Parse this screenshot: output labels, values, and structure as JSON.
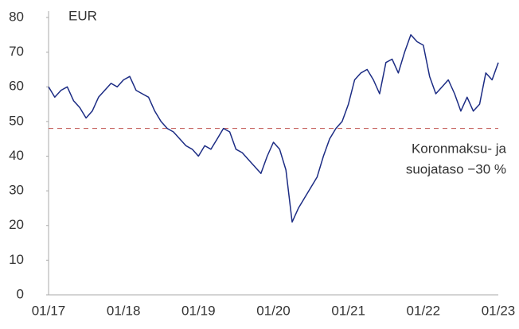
{
  "chart_data": {
    "type": "line",
    "ylabel": "EUR",
    "x": [
      "01/17",
      "02/17",
      "03/17",
      "04/17",
      "05/17",
      "06/17",
      "07/17",
      "08/17",
      "09/17",
      "10/17",
      "11/17",
      "12/17",
      "01/18",
      "02/18",
      "03/18",
      "04/18",
      "05/18",
      "06/18",
      "07/18",
      "08/18",
      "09/18",
      "10/18",
      "11/18",
      "12/18",
      "01/19",
      "02/19",
      "03/19",
      "04/19",
      "05/19",
      "06/19",
      "07/19",
      "08/19",
      "09/19",
      "10/19",
      "11/19",
      "12/19",
      "01/20",
      "02/20",
      "03/20",
      "04/20",
      "05/20",
      "06/20",
      "07/20",
      "08/20",
      "09/20",
      "10/20",
      "11/20",
      "12/20",
      "01/21",
      "02/21",
      "03/21",
      "04/21",
      "05/21",
      "06/21",
      "07/21",
      "08/21",
      "09/21",
      "10/21",
      "11/21",
      "12/21",
      "01/22",
      "02/22",
      "03/22",
      "04/22",
      "05/22",
      "06/22",
      "07/22",
      "08/22",
      "09/22",
      "10/22",
      "11/22",
      "12/22",
      "01/23"
    ],
    "series": [
      {
        "name": "EUR",
        "color": "#1c2c84",
        "values": [
          60,
          57,
          59,
          60,
          56,
          54,
          51,
          53,
          57,
          59,
          61,
          60,
          62,
          63,
          59,
          58,
          57,
          53,
          50,
          48,
          47,
          45,
          43,
          42,
          40,
          43,
          42,
          45,
          48,
          47,
          42,
          41,
          39,
          37,
          35,
          40,
          44,
          42,
          36,
          21,
          25,
          28,
          31,
          34,
          40,
          45,
          48,
          50,
          55,
          62,
          64,
          65,
          62,
          58,
          67,
          68,
          64,
          70,
          75,
          73,
          72,
          63,
          58,
          60,
          62,
          58,
          53,
          57,
          53,
          55,
          64,
          62,
          67
        ]
      }
    ],
    "reference_line": {
      "value": 48,
      "color": "#c0504d"
    },
    "annotation": [
      "Koronmaksu- ja",
      "suojataso −30 %"
    ],
    "ylim": [
      0,
      80
    ],
    "yticks": [
      0,
      10,
      20,
      30,
      40,
      50,
      60,
      70,
      80
    ],
    "xticks": [
      "01/17",
      "01/18",
      "01/19",
      "01/20",
      "01/21",
      "01/22",
      "01/23"
    ],
    "grid": false
  }
}
